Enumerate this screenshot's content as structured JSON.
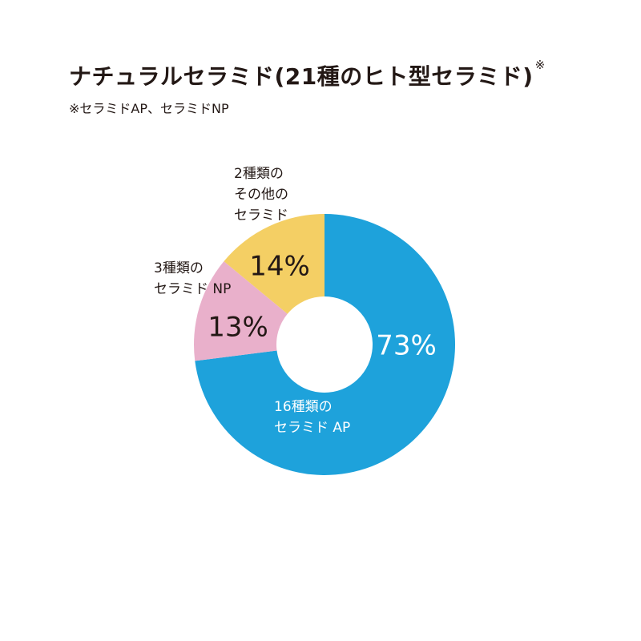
{
  "header": {
    "title": "ナチュラルセラミド(21種のヒト型セラミド)",
    "title_mark": "※",
    "note": "※セラミドAP、セラミドNP"
  },
  "chart_data": {
    "type": "pie",
    "donut": true,
    "slices": [
      {
        "label": [
          "16種類の",
          "セラミド AP"
        ],
        "value": 73,
        "value_label": "73%",
        "color": "#1ea2db",
        "value_color": "#ffffff",
        "label_color": "#ffffff"
      },
      {
        "label": [
          "3種類の",
          "セラミド NP"
        ],
        "value": 13,
        "value_label": "13%",
        "color": "#e9b0cb",
        "value_color": "#231815",
        "label_color": "#231815"
      },
      {
        "label": [
          "2種類の",
          "その他の",
          "セラミド"
        ],
        "value": 14,
        "value_label": "14%",
        "color": "#f4cf64",
        "value_color": "#231815",
        "label_color": "#231815"
      }
    ]
  }
}
